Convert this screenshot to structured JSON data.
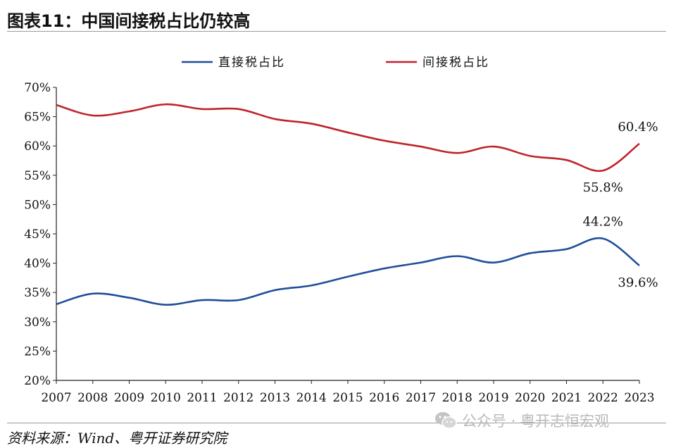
{
  "header": {
    "title": "图表11：中国间接税占比仍较高"
  },
  "footer": {
    "source": "资料来源：Wind、粤开证券研究院",
    "watermark": "公众号 · 粤开志恒宏观",
    "watermark_icon": "wechat-icon"
  },
  "chart_data": {
    "type": "line",
    "title": "",
    "xlabel": "",
    "ylabel": "",
    "x": [
      "2007",
      "2008",
      "2009",
      "2010",
      "2011",
      "2012",
      "2013",
      "2014",
      "2015",
      "2016",
      "2017",
      "2018",
      "2019",
      "2020",
      "2021",
      "2022",
      "2023"
    ],
    "ylim": [
      20,
      70
    ],
    "yticks": [
      "20%",
      "25%",
      "30%",
      "35%",
      "40%",
      "45%",
      "50%",
      "55%",
      "60%",
      "65%",
      "70%"
    ],
    "grid": false,
    "legend_position": "top",
    "series": [
      {
        "name": "直接税占比",
        "color": "#1f4e9a",
        "values": [
          33.0,
          34.8,
          34.1,
          32.9,
          33.7,
          33.7,
          35.4,
          36.2,
          37.7,
          39.1,
          40.1,
          41.2,
          40.1,
          41.7,
          42.4,
          44.2,
          39.6
        ]
      },
      {
        "name": "间接税占比",
        "color": "#c0232b",
        "values": [
          67.0,
          65.2,
          65.9,
          67.1,
          66.3,
          66.3,
          64.6,
          63.8,
          62.3,
          60.9,
          59.9,
          58.8,
          59.9,
          58.3,
          57.6,
          55.8,
          60.4
        ]
      }
    ],
    "annotations": [
      {
        "series": 1,
        "index": 16,
        "text": "60.4%",
        "pos": "above"
      },
      {
        "series": 1,
        "index": 15,
        "text": "55.8%",
        "pos": "below"
      },
      {
        "series": 0,
        "index": 15,
        "text": "44.2%",
        "pos": "above"
      },
      {
        "series": 0,
        "index": 16,
        "text": "39.6%",
        "pos": "below"
      }
    ]
  }
}
